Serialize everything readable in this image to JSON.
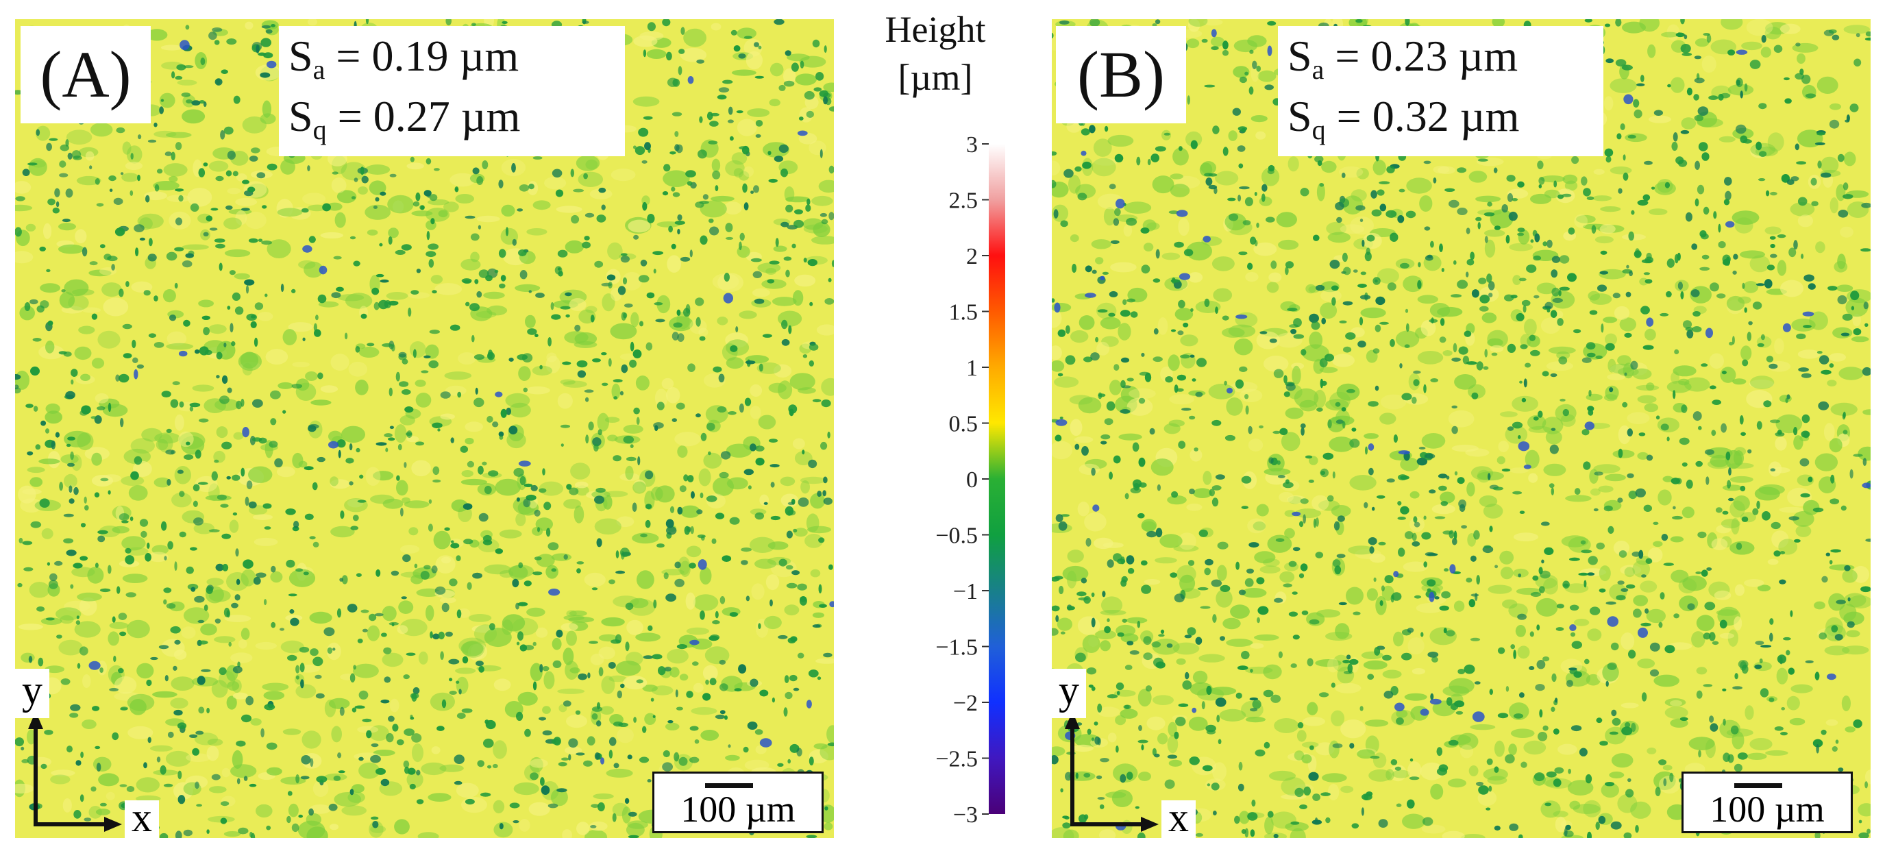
{
  "panels": [
    {
      "letter": "(A)",
      "sa_symbol": "S",
      "sa_sub": "a",
      "sa_value": " = 0.19 µm",
      "sq_symbol": "S",
      "sq_sub": "q",
      "sq_value": " = 0.27 µm",
      "axis_y": "y",
      "axis_x": "x",
      "scale_label": "100 µm"
    },
    {
      "letter": "(B)",
      "sa_symbol": "S",
      "sa_sub": "a",
      "sa_value": " = 0.23 µm",
      "sq_symbol": "S",
      "sq_sub": "q",
      "sq_value": " = 0.32 µm",
      "axis_y": "y",
      "axis_x": "x",
      "scale_label": "100 µm"
    }
  ],
  "colorbar": {
    "title_line1": "Height",
    "title_line2": "[µm]",
    "range": [
      -3,
      3
    ],
    "ticks": [
      "3",
      "2.5",
      "2",
      "1.5",
      "1",
      "0.5",
      "0",
      "−0.5",
      "−1",
      "−1.5",
      "−2",
      "−2.5",
      "−3"
    ],
    "tick_values": [
      3,
      2.5,
      2,
      1.5,
      1,
      0.5,
      0,
      -0.5,
      -1,
      -1.5,
      -2,
      -2.5,
      -3
    ],
    "gradient_stops": [
      {
        "value": 3,
        "color": "#ffffff"
      },
      {
        "value": 2.5,
        "color": "#f0a0a0"
      },
      {
        "value": 2,
        "color": "#ff1010"
      },
      {
        "value": 1.5,
        "color": "#ff5a00"
      },
      {
        "value": 1,
        "color": "#ffaa00"
      },
      {
        "value": 0.5,
        "color": "#ffe800"
      },
      {
        "value": 0,
        "color": "#2ab034"
      },
      {
        "value": -0.5,
        "color": "#10a040"
      },
      {
        "value": -1,
        "color": "#18808a"
      },
      {
        "value": -1.5,
        "color": "#2060d8"
      },
      {
        "value": -2,
        "color": "#1030ff"
      },
      {
        "value": -2.5,
        "color": "#4018c0"
      },
      {
        "value": -3,
        "color": "#4a0078"
      }
    ]
  },
  "colors": {
    "surface_base": "#e9ec57",
    "surface_light": "#f4f27e",
    "surface_green": "#7ecf3c",
    "spot_dark": "#1f9a3c",
    "spot_deep": "#137a52",
    "spot_blue": "#2a55c8"
  }
}
